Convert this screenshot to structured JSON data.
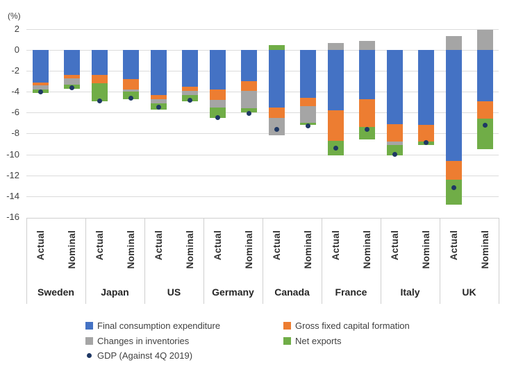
{
  "chart_data": {
    "type": "bar",
    "stacked": true,
    "title": "",
    "ylabel": "(%)",
    "ylim": [
      -16,
      2
    ],
    "yticks": [
      2,
      0,
      -2,
      -4,
      -6,
      -8,
      -10,
      -12,
      -14,
      -16
    ],
    "grid": true,
    "legend_position": "bottom",
    "groups": [
      "Sweden",
      "Japan",
      "US",
      "Germany",
      "Canada",
      "France",
      "Italy",
      "UK"
    ],
    "bar_labels": [
      "Actual",
      "Nominal"
    ],
    "bar_order_note": "values arrays are 16 long: [Sweden Actual, Sweden Nominal, Japan Actual, Japan Nominal, US Actual, US Nominal, Germany Actual, Germany Nominal, Canada Actual, Canada Nominal, France Actual, France Nominal, Italy Actual, Italy Nominal, UK Actual, UK Nominal]",
    "series": [
      {
        "name": "Final consumption expenditure",
        "color": "#4472C4",
        "values": [
          -3.1,
          -2.4,
          -2.4,
          -2.8,
          -4.3,
          -3.5,
          -3.8,
          -3.0,
          -5.5,
          -4.6,
          -5.8,
          -4.7,
          -7.1,
          -7.2,
          -10.6,
          -4.9
        ]
      },
      {
        "name": "Gross fixed capital formation",
        "color": "#ED7D31",
        "values": [
          -0.3,
          -0.3,
          -0.8,
          -1.0,
          -0.4,
          -0.4,
          -1.0,
          -0.9,
          -1.0,
          -0.8,
          -2.9,
          -2.7,
          -1.7,
          -1.6,
          -1.8,
          -1.7
        ]
      },
      {
        "name": "Changes in inventories",
        "color": "#A5A5A5",
        "values": [
          -0.4,
          -0.6,
          0.0,
          -0.2,
          -0.4,
          -0.4,
          -0.7,
          -1.7,
          -1.7,
          -1.6,
          0.7,
          0.9,
          -0.3,
          0.0,
          1.3,
          1.9
        ]
      },
      {
        "name": "Net exports",
        "color": "#70AD47",
        "values": [
          -0.3,
          -0.4,
          -1.7,
          -0.7,
          -0.6,
          -0.6,
          -1.0,
          -0.4,
          0.5,
          -0.2,
          -1.4,
          -1.2,
          -1.0,
          -0.3,
          -2.4,
          -2.9
        ]
      }
    ],
    "dot_series": {
      "name": "GDP (Against 4Q 2019)",
      "color": "#1F3864",
      "values": [
        -4.0,
        -3.6,
        -4.9,
        -4.6,
        -5.5,
        -4.8,
        -6.5,
        -6.1,
        -7.6,
        -7.3,
        -9.4,
        -7.6,
        -10.0,
        -8.9,
        -13.2,
        -7.2
      ]
    },
    "colors": {
      "gridline": "#dbdbdb",
      "axis_text": "#404040",
      "category_divider": "#cfcfcf",
      "background": "#ffffff"
    }
  }
}
